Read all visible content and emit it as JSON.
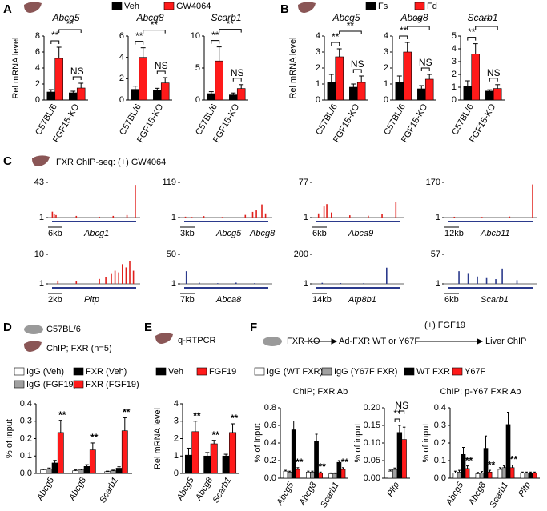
{
  "chart_data": [
    {
      "type": "bar-panel",
      "label": "A",
      "series": [
        {
          "name": "Veh",
          "color": "#000000"
        },
        {
          "name": "GW4064",
          "color": "#ff1a1a"
        }
      ],
      "charts": [
        {
          "type": "bar",
          "title": "Abcg5",
          "ylabel": "Rel mRNA level",
          "categories": [
            "C57BL/6",
            "FGF15-KO"
          ],
          "values": [
            [
              1.0,
              0.9
            ],
            [
              5.2,
              1.5
            ]
          ],
          "errors": [
            [
              0.3,
              0.2
            ],
            [
              1.4,
              0.6
            ]
          ],
          "ylim": [
            0,
            8
          ],
          "yticks": [
            0,
            2,
            4,
            6,
            8
          ],
          "bracket_labels": [
            "**",
            "NS"
          ],
          "across_label": "**"
        },
        {
          "type": "bar",
          "title": "Abcg8",
          "categories": [
            "C57BL/6",
            "FGF15-KO"
          ],
          "values": [
            [
              1.0,
              0.9
            ],
            [
              4.0,
              1.6
            ]
          ],
          "errors": [
            [
              0.3,
              0.2
            ],
            [
              0.9,
              0.5
            ]
          ],
          "ylim": [
            0,
            6
          ],
          "yticks": [
            0,
            2,
            4,
            6
          ],
          "bracket_labels": [
            "**",
            "NS"
          ],
          "across_label": "**"
        },
        {
          "type": "bar",
          "title": "Scarb1",
          "categories": [
            "C57BL/6",
            "FGF15-KO"
          ],
          "values": [
            [
              1.0,
              0.8
            ],
            [
              6.1,
              1.8
            ]
          ],
          "errors": [
            [
              0.3,
              0.3
            ],
            [
              2.2,
              0.6
            ]
          ],
          "ylim": [
            0,
            10
          ],
          "yticks": [
            0,
            5,
            10
          ],
          "bracket_labels": [
            "**",
            "NS"
          ],
          "across_label": "**"
        }
      ]
    },
    {
      "type": "bar-panel",
      "label": "B",
      "series": [
        {
          "name": "Fs",
          "color": "#000000"
        },
        {
          "name": "Fd",
          "color": "#ff1a1a"
        }
      ],
      "charts": [
        {
          "type": "bar",
          "title": "Abcg5",
          "ylabel": "Rel mRNA level",
          "categories": [
            "C57BL/6",
            "FGF15-KO"
          ],
          "values": [
            [
              1.1,
              0.8
            ],
            [
              2.7,
              1.1
            ]
          ],
          "errors": [
            [
              0.5,
              0.2
            ],
            [
              0.5,
              0.4
            ]
          ],
          "ylim": [
            0,
            4
          ],
          "yticks": [
            0,
            1,
            2,
            3,
            4
          ],
          "bracket_labels": [
            "**",
            "NS"
          ],
          "across_label": "**"
        },
        {
          "type": "bar",
          "title": "Abcg8",
          "categories": [
            "C57BL/6",
            "FGF15-KO"
          ],
          "values": [
            [
              1.1,
              0.7
            ],
            [
              3.0,
              1.3
            ]
          ],
          "errors": [
            [
              0.4,
              0.2
            ],
            [
              0.6,
              0.3
            ]
          ],
          "ylim": [
            0,
            4
          ],
          "yticks": [
            0,
            1,
            2,
            3,
            4
          ],
          "bracket_labels": [
            "**",
            "NS"
          ],
          "across_label": "**"
        },
        {
          "type": "bar",
          "title": "Scarb1",
          "categories": [
            "C57BL/6",
            "FGF15-KO"
          ],
          "values": [
            [
              1.1,
              0.7
            ],
            [
              3.6,
              0.9
            ]
          ],
          "errors": [
            [
              0.4,
              0.1
            ],
            [
              0.8,
              0.3
            ]
          ],
          "ylim": [
            0,
            5
          ],
          "yticks": [
            0,
            1,
            2,
            3,
            4,
            5
          ],
          "bracket_labels": [
            "**",
            "NS"
          ],
          "across_label": "**"
        }
      ]
    },
    {
      "type": "tracks",
      "label": "C",
      "title": "FXR ChIP-seq: (+) GW4064",
      "tracks": [
        {
          "type": "track",
          "genes": [
            "Abcg1"
          ],
          "scale": "6kb",
          "color": "#e0201c",
          "ylim": [
            1,
            43
          ],
          "yticks": [
            1,
            43
          ],
          "x": [
            4,
            6,
            8,
            30,
            55,
            70,
            85,
            94
          ],
          "values": [
            8,
            5,
            4,
            3,
            2,
            3,
            4,
            40
          ]
        },
        {
          "type": "track",
          "genes": [
            "Abcg5",
            "Abcg8"
          ],
          "scale": "3kb",
          "color": "#e0201c",
          "ylim": [
            1,
            119
          ],
          "yticks": [
            1,
            119
          ],
          "x": [
            5,
            12,
            25,
            45,
            70,
            78,
            82,
            88,
            92
          ],
          "values": [
            4,
            3,
            6,
            3,
            10,
            20,
            25,
            45,
            15
          ]
        },
        {
          "type": "track",
          "genes": [
            "Abca9"
          ],
          "scale": "6kb",
          "color": "#e0201c",
          "ylim": [
            1,
            77
          ],
          "yticks": [
            1,
            77
          ],
          "x": [
            6,
            12,
            15,
            20,
            40,
            60,
            75,
            90
          ],
          "values": [
            10,
            25,
            30,
            12,
            6,
            5,
            8,
            35
          ]
        },
        {
          "type": "track",
          "genes": [
            "Abcb11"
          ],
          "scale": "12kb",
          "color": "#e0201c",
          "ylim": [
            1,
            170
          ],
          "yticks": [
            1,
            170
          ],
          "x": [
            10,
            40,
            70,
            95
          ],
          "values": [
            5,
            4,
            6,
            160
          ]
        },
        {
          "type": "track",
          "genes": [
            "Pltp"
          ],
          "scale": "2kb",
          "color": "#e0201c",
          "ylim": [
            1,
            10
          ],
          "yticks": [
            1,
            10
          ],
          "x": [
            10,
            30,
            55,
            62,
            68,
            72,
            76,
            80,
            84,
            88,
            92
          ],
          "values": [
            2,
            1.8,
            2.5,
            3,
            4,
            5,
            4.5,
            7,
            6,
            8,
            5
          ]
        },
        {
          "type": "track",
          "genes": [
            "Abca8"
          ],
          "scale": "7kb",
          "color": "#2b3a8c",
          "ylim": [
            1,
            50
          ],
          "yticks": [
            1,
            50
          ],
          "x": [
            6,
            20,
            40,
            60,
            80
          ],
          "values": [
            22,
            3,
            2,
            3,
            2
          ]
        },
        {
          "type": "track",
          "genes": [
            "Atp8b1"
          ],
          "scale": "14kb",
          "color": "#2b3a8c",
          "ylim": [
            1,
            200
          ],
          "yticks": [
            1,
            200
          ],
          "x": [
            10,
            30,
            55,
            80
          ],
          "values": [
            8,
            6,
            5,
            110
          ]
        },
        {
          "type": "track",
          "genes": [
            "Scarb1"
          ],
          "scale": "6kb",
          "color": "#2b3a8c",
          "ylim": [
            1,
            57
          ],
          "yticks": [
            1,
            57
          ],
          "x": [
            15,
            25,
            35,
            45,
            55,
            62,
            78
          ],
          "values": [
            25,
            20,
            15,
            12,
            10,
            30,
            8
          ]
        }
      ]
    },
    {
      "type": "bar-panel",
      "label": "D",
      "header": [
        "C57BL/6",
        "ChIP; FXR (n=5)"
      ],
      "series": [
        {
          "name": "IgG (Veh)",
          "color": "#ffffff"
        },
        {
          "name": "IgG (FGF19)",
          "color": "#a0a0a0"
        },
        {
          "name": "FXR (Veh)",
          "color": "#000000"
        },
        {
          "name": "FXR (FGF19)",
          "color": "#ff1a1a"
        }
      ],
      "charts": [
        {
          "type": "bar",
          "ylabel": "% of input",
          "categories": [
            "Abcg5",
            "Abcg8",
            "Scarb1"
          ],
          "values": [
            [
              0.02,
              0.015,
              0.01
            ],
            [
              0.025,
              0.02,
              0.015
            ],
            [
              0.06,
              0.04,
              0.03
            ],
            [
              0.235,
              0.135,
              0.245
            ]
          ],
          "errors": [
            [
              0.005,
              0.005,
              0.003
            ],
            [
              0.006,
              0.005,
              0.004
            ],
            [
              0.015,
              0.01,
              0.008
            ],
            [
              0.07,
              0.04,
              0.075
            ]
          ],
          "labels": [
            [
              null,
              null,
              null
            ],
            [
              null,
              null,
              null
            ],
            [
              null,
              null,
              null
            ],
            [
              "**",
              "**",
              "**"
            ]
          ],
          "ylim": [
            0,
            0.4
          ],
          "yticks": [
            {
              "value": 0,
              "label": "0.0"
            },
            0.1,
            0.2,
            0.3,
            0.4
          ]
        }
      ]
    },
    {
      "type": "bar-panel",
      "label": "E",
      "header": [
        "q-RTPCR"
      ],
      "series": [
        {
          "name": "Veh",
          "color": "#000000"
        },
        {
          "name": "FGF19",
          "color": "#ff1a1a"
        }
      ],
      "charts": [
        {
          "type": "bar",
          "ylabel": "Rel mRNA level",
          "categories": [
            "Abcg5",
            "Abcg8",
            "Scarb1"
          ],
          "values": [
            [
              1.05,
              1.0,
              1.0
            ],
            [
              2.4,
              1.7,
              2.35
            ]
          ],
          "errors": [
            [
              0.4,
              0.2,
              0.1
            ],
            [
              0.6,
              0.2,
              0.5
            ]
          ],
          "labels": [
            [
              null,
              null,
              null
            ],
            [
              "**",
              "**",
              "**"
            ]
          ],
          "ylim": [
            0,
            4
          ],
          "yticks": [
            0,
            1,
            2,
            3,
            4
          ]
        }
      ]
    },
    {
      "type": "bar-panel",
      "label": "F",
      "header": [
        "FXR-KO",
        "Ad-FXR WT or Y67F",
        "(+) FGF19",
        "Liver ChIP"
      ],
      "subtitles": [
        "ChIP; FXR Ab",
        "ChIP; p-Y67 FXR Ab"
      ],
      "series": [
        {
          "name": "IgG (WT FXR)",
          "color": "#ffffff"
        },
        {
          "name": "IgG (Y67F FXR)",
          "color": "#a0a0a0"
        },
        {
          "name": "WT FXR",
          "color": "#000000"
        },
        {
          "name": "Y67F",
          "color": "#ff1a1a"
        }
      ],
      "charts": [
        {
          "type": "bar",
          "ylabel": "% of input",
          "categories": [
            "Abcg5",
            "Abcg8",
            "Scarb1"
          ],
          "values": [
            [
              0.08,
              0.07,
              0.05
            ],
            [
              0.07,
              0.07,
              0.05
            ],
            [
              0.55,
              0.42,
              0.18
            ],
            [
              0.1,
              0.06,
              0.1
            ]
          ],
          "errors": [
            [
              0.01,
              0.01,
              0.01
            ],
            [
              0.01,
              0.01,
              0.01
            ],
            [
              0.1,
              0.08,
              0.02
            ],
            [
              0.02,
              0.01,
              0.02
            ]
          ],
          "labels": [
            [
              null,
              null,
              null
            ],
            [
              null,
              null,
              null
            ],
            [
              null,
              null,
              null
            ],
            [
              "**",
              "**",
              "**"
            ]
          ],
          "ylim": [
            0,
            0.8
          ],
          "yticks": [
            {
              "value": 0,
              "label": "0.0"
            },
            0.2,
            0.4,
            0.6,
            0.8
          ]
        },
        {
          "type": "bar",
          "ylabel": "% of input",
          "categories": [
            "Pltp"
          ],
          "values": [
            [
              0.02
            ],
            [
              0.025
            ],
            [
              0.13
            ],
            [
              0.11
            ]
          ],
          "errors": [
            [
              0.003
            ],
            [
              0.004
            ],
            [
              0.02
            ],
            [
              0.035
            ]
          ],
          "brackets": [
            "**",
            "NS"
          ],
          "ylim": [
            0,
            0.2
          ],
          "yticks": [
            {
              "value": 0,
              "label": "0.00"
            },
            {
              "value": 0.05,
              "label": "0.05"
            },
            {
              "value": 0.1,
              "label": "0.10"
            },
            {
              "value": 0.15,
              "label": "0.15"
            },
            {
              "value": 0.2,
              "label": "0.20"
            }
          ]
        },
        {
          "type": "bar",
          "ylabel": "% of input",
          "categories": [
            "Abcg5",
            "Abcg8",
            "Scarb1",
            "Pltp"
          ],
          "values": [
            [
              0.03,
              0.025,
              0.05,
              0.03
            ],
            [
              0.035,
              0.03,
              0.06,
              0.03
            ],
            [
              0.135,
              0.17,
              0.305,
              0.03
            ],
            [
              0.055,
              0.035,
              0.06,
              0.03
            ]
          ],
          "errors": [
            [
              0.01,
              0.008,
              0.01,
              0.005
            ],
            [
              0.01,
              0.008,
              0.01,
              0.005
            ],
            [
              0.04,
              0.07,
              0.07,
              0.005
            ],
            [
              0.015,
              0.01,
              0.015,
              0.005
            ]
          ],
          "labels": [
            [
              null,
              null,
              null,
              null
            ],
            [
              null,
              null,
              null,
              null
            ],
            [
              null,
              null,
              null,
              null
            ],
            [
              "**",
              "**",
              "**",
              null
            ]
          ],
          "ylim": [
            0,
            0.4
          ],
          "yticks": [
            {
              "value": 0,
              "label": "0.0"
            },
            0.1,
            0.2,
            0.3,
            0.4
          ]
        }
      ]
    }
  ]
}
